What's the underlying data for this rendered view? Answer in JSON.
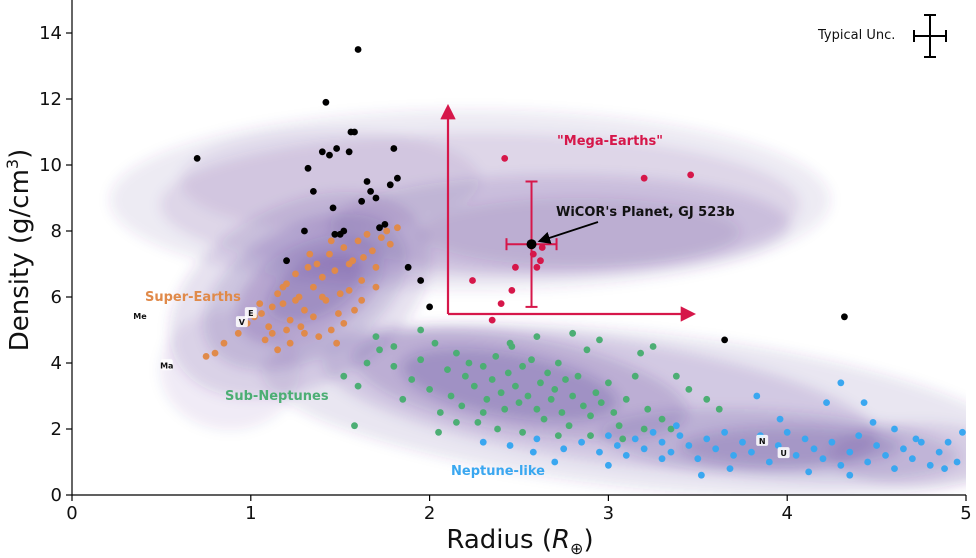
{
  "chart_data": {
    "type": "scatter",
    "xlabel": "Radius (",
    "xlabel_symbol": "R",
    "xlabel_sub": "⊕",
    "xlabel_end": ")",
    "ylabel": "Density (g/cm",
    "ylabel_sup": "3",
    "ylabel_end": ")",
    "xlim": [
      0,
      5
    ],
    "ylim": [
      0,
      15
    ],
    "xticks": [
      "0",
      "1",
      "2",
      "3",
      "4",
      "5"
    ],
    "yticks": [
      "0",
      "2",
      "4",
      "6",
      "8",
      "10",
      "12",
      "14"
    ],
    "grid": false,
    "colors": {
      "black": "#000000",
      "super_earth": "#e08a4a",
      "sub_neptune": "#4cae74",
      "neptune_like": "#3aa7f0",
      "mega_earth": "#d6174a",
      "kde": "#4b2a8e"
    },
    "annotations": {
      "super_earths": "Super-Earths",
      "sub_neptunes": "Sub-Neptunes",
      "neptune_like": "Neptune-like",
      "mega_earths": "\"Mega-Earths\"",
      "wicor": "WiCOR's Planet, GJ 523b",
      "typical_unc": "Typical Unc."
    },
    "solar_system": [
      {
        "label": "Me",
        "x": 0.38,
        "y": 5.43
      },
      {
        "label": "V",
        "x": 0.95,
        "y": 5.24
      },
      {
        "label": "E",
        "x": 1.0,
        "y": 5.51
      },
      {
        "label": "Ma",
        "x": 0.53,
        "y": 3.93
      },
      {
        "label": "N",
        "x": 3.86,
        "y": 1.64
      },
      {
        "label": "U",
        "x": 3.98,
        "y": 1.27
      }
    ],
    "highlight": {
      "x": 2.57,
      "y": 7.6,
      "xerr": 0.14,
      "yerr": 1.9
    },
    "series": [
      {
        "name": "Super-Earths",
        "color_key": "super_earth",
        "points": [
          [
            0.75,
            4.2
          ],
          [
            0.8,
            4.3
          ],
          [
            0.85,
            4.6
          ],
          [
            0.93,
            4.9
          ],
          [
            0.98,
            5.2
          ],
          [
            1.02,
            5.4
          ],
          [
            1.06,
            5.5
          ],
          [
            1.1,
            5.1
          ],
          [
            1.12,
            5.7
          ],
          [
            1.15,
            6.1
          ],
          [
            1.18,
            5.8
          ],
          [
            1.2,
            6.4
          ],
          [
            1.22,
            5.3
          ],
          [
            1.25,
            6.7
          ],
          [
            1.27,
            6.0
          ],
          [
            1.3,
            5.6
          ],
          [
            1.32,
            6.9
          ],
          [
            1.35,
            6.3
          ],
          [
            1.37,
            7.0
          ],
          [
            1.4,
            6.6
          ],
          [
            1.42,
            5.9
          ],
          [
            1.44,
            7.3
          ],
          [
            1.47,
            6.8
          ],
          [
            1.49,
            5.5
          ],
          [
            1.52,
            7.5
          ],
          [
            1.55,
            6.2
          ],
          [
            1.57,
            7.1
          ],
          [
            1.6,
            7.7
          ],
          [
            1.62,
            6.5
          ],
          [
            1.65,
            7.9
          ],
          [
            1.68,
            7.4
          ],
          [
            1.7,
            6.9
          ],
          [
            1.73,
            7.8
          ],
          [
            1.76,
            8.0
          ],
          [
            1.52,
            5.2
          ],
          [
            1.45,
            5.0
          ],
          [
            1.38,
            4.8
          ],
          [
            1.3,
            4.9
          ],
          [
            1.22,
            4.6
          ],
          [
            1.15,
            4.4
          ],
          [
            1.08,
            4.7
          ],
          [
            1.28,
            5.1
          ],
          [
            1.35,
            5.4
          ],
          [
            1.48,
            4.6
          ],
          [
            1.58,
            5.6
          ],
          [
            1.4,
            6.0
          ],
          [
            1.25,
            5.9
          ],
          [
            1.18,
            6.3
          ],
          [
            1.33,
            7.3
          ],
          [
            1.55,
            7.0
          ],
          [
            1.63,
            7.2
          ],
          [
            1.45,
            7.7
          ],
          [
            1.2,
            5.0
          ],
          [
            1.12,
            4.9
          ],
          [
            1.05,
            5.8
          ],
          [
            1.62,
            5.9
          ],
          [
            1.7,
            6.3
          ],
          [
            1.78,
            7.6
          ],
          [
            1.82,
            8.1
          ],
          [
            1.5,
            6.1
          ]
        ]
      },
      {
        "name": "Sub-Neptunes",
        "color_key": "sub_neptune",
        "points": [
          [
            1.52,
            3.6
          ],
          [
            1.6,
            3.3
          ],
          [
            1.65,
            4.0
          ],
          [
            1.72,
            4.4
          ],
          [
            1.8,
            3.9
          ],
          [
            1.85,
            2.9
          ],
          [
            1.9,
            3.5
          ],
          [
            1.95,
            4.1
          ],
          [
            2.0,
            3.2
          ],
          [
            2.03,
            4.6
          ],
          [
            2.06,
            2.5
          ],
          [
            2.1,
            3.8
          ],
          [
            2.12,
            3.0
          ],
          [
            2.15,
            4.3
          ],
          [
            2.18,
            2.7
          ],
          [
            2.2,
            3.6
          ],
          [
            2.22,
            4.0
          ],
          [
            2.25,
            3.3
          ],
          [
            2.27,
            2.2
          ],
          [
            2.3,
            3.9
          ],
          [
            2.32,
            2.9
          ],
          [
            2.35,
            3.5
          ],
          [
            2.37,
            4.2
          ],
          [
            2.4,
            3.1
          ],
          [
            2.42,
            2.6
          ],
          [
            2.44,
            3.7
          ],
          [
            2.46,
            4.5
          ],
          [
            2.48,
            3.3
          ],
          [
            2.5,
            2.8
          ],
          [
            2.52,
            3.9
          ],
          [
            2.55,
            3.0
          ],
          [
            2.57,
            4.1
          ],
          [
            2.6,
            2.6
          ],
          [
            2.62,
            3.4
          ],
          [
            2.64,
            2.3
          ],
          [
            2.66,
            3.7
          ],
          [
            2.68,
            2.9
          ],
          [
            2.7,
            3.2
          ],
          [
            2.72,
            4.0
          ],
          [
            2.74,
            2.5
          ],
          [
            2.76,
            3.5
          ],
          [
            2.78,
            2.1
          ],
          [
            2.8,
            3.0
          ],
          [
            2.83,
            3.6
          ],
          [
            2.86,
            2.7
          ],
          [
            2.88,
            4.4
          ],
          [
            2.9,
            2.4
          ],
          [
            2.93,
            3.1
          ],
          [
            2.96,
            2.8
          ],
          [
            3.0,
            3.4
          ],
          [
            3.03,
            2.5
          ],
          [
            3.06,
            2.1
          ],
          [
            3.1,
            2.9
          ],
          [
            3.15,
            3.6
          ],
          [
            3.18,
            4.3
          ],
          [
            3.22,
            2.6
          ],
          [
            3.25,
            4.5
          ],
          [
            3.3,
            2.3
          ],
          [
            3.38,
            3.6
          ],
          [
            3.45,
            3.2
          ],
          [
            3.55,
            2.9
          ],
          [
            3.62,
            2.6
          ],
          [
            3.2,
            2.0
          ],
          [
            2.15,
            2.2
          ],
          [
            2.3,
            2.5
          ],
          [
            2.45,
            4.6
          ],
          [
            2.6,
            4.8
          ],
          [
            2.8,
            4.9
          ],
          [
            2.95,
            4.7
          ],
          [
            1.8,
            4.5
          ],
          [
            1.7,
            4.8
          ],
          [
            1.95,
            5.0
          ],
          [
            1.58,
            2.1
          ],
          [
            2.05,
            1.9
          ],
          [
            2.38,
            2.0
          ],
          [
            2.52,
            1.9
          ],
          [
            2.72,
            1.8
          ],
          [
            2.9,
            1.8
          ],
          [
            3.08,
            1.7
          ],
          [
            3.35,
            2.0
          ]
        ]
      },
      {
        "name": "Neptune-like",
        "color_key": "neptune_like",
        "points": [
          [
            2.3,
            1.6
          ],
          [
            2.45,
            1.5
          ],
          [
            2.6,
            1.7
          ],
          [
            2.75,
            1.4
          ],
          [
            2.85,
            1.6
          ],
          [
            2.95,
            1.3
          ],
          [
            3.0,
            1.8
          ],
          [
            3.05,
            1.5
          ],
          [
            3.1,
            1.2
          ],
          [
            3.15,
            1.7
          ],
          [
            3.2,
            1.4
          ],
          [
            3.25,
            1.9
          ],
          [
            3.3,
            1.6
          ],
          [
            3.35,
            1.3
          ],
          [
            3.4,
            1.8
          ],
          [
            3.45,
            1.5
          ],
          [
            3.5,
            1.1
          ],
          [
            3.55,
            1.7
          ],
          [
            3.6,
            1.4
          ],
          [
            3.65,
            1.9
          ],
          [
            3.7,
            1.2
          ],
          [
            3.75,
            1.6
          ],
          [
            3.8,
            1.3
          ],
          [
            3.85,
            1.8
          ],
          [
            3.9,
            1.0
          ],
          [
            3.95,
            1.5
          ],
          [
            4.0,
            1.9
          ],
          [
            4.05,
            1.2
          ],
          [
            4.1,
            1.7
          ],
          [
            4.15,
            1.4
          ],
          [
            4.2,
            1.1
          ],
          [
            4.25,
            1.6
          ],
          [
            4.3,
            0.9
          ],
          [
            4.35,
            1.3
          ],
          [
            4.4,
            1.8
          ],
          [
            4.45,
            1.0
          ],
          [
            4.5,
            1.5
          ],
          [
            4.55,
            1.2
          ],
          [
            4.6,
            0.8
          ],
          [
            4.65,
            1.4
          ],
          [
            4.7,
            1.1
          ],
          [
            4.75,
            1.6
          ],
          [
            4.8,
            0.9
          ],
          [
            4.85,
            1.3
          ],
          [
            4.9,
            1.6
          ],
          [
            4.95,
            1.0
          ],
          [
            4.98,
            1.9
          ],
          [
            4.22,
            2.8
          ],
          [
            4.3,
            3.4
          ],
          [
            4.43,
            2.8
          ],
          [
            3.83,
            3.0
          ],
          [
            3.38,
            2.1
          ],
          [
            4.72,
            1.7
          ],
          [
            4.88,
            0.8
          ],
          [
            4.6,
            2.0
          ],
          [
            3.52,
            0.6
          ],
          [
            3.68,
            0.8
          ],
          [
            4.12,
            0.7
          ],
          [
            4.35,
            0.6
          ],
          [
            3.96,
            2.3
          ],
          [
            4.48,
            2.2
          ],
          [
            3.0,
            0.9
          ],
          [
            3.3,
            1.1
          ],
          [
            2.58,
            1.3
          ],
          [
            2.7,
            1.0
          ]
        ]
      },
      {
        "name": "Mega-Earths",
        "color_key": "mega_earth",
        "points": [
          [
            2.42,
            10.2
          ],
          [
            3.2,
            9.6
          ],
          [
            3.46,
            9.7
          ],
          [
            2.24,
            6.5
          ],
          [
            2.4,
            5.8
          ],
          [
            2.46,
            6.2
          ],
          [
            2.48,
            6.9
          ],
          [
            2.58,
            7.3
          ],
          [
            2.62,
            7.1
          ],
          [
            2.63,
            7.5
          ],
          [
            2.6,
            6.9
          ],
          [
            2.35,
            5.3
          ]
        ]
      },
      {
        "name": "Other",
        "color_key": "black",
        "points": [
          [
            0.7,
            10.2
          ],
          [
            1.2,
            7.1
          ],
          [
            1.3,
            8.0
          ],
          [
            1.32,
            9.9
          ],
          [
            1.35,
            9.2
          ],
          [
            1.4,
            10.4
          ],
          [
            1.42,
            11.9
          ],
          [
            1.44,
            10.3
          ],
          [
            1.46,
            8.7
          ],
          [
            1.47,
            7.9
          ],
          [
            1.48,
            10.5
          ],
          [
            1.5,
            7.9
          ],
          [
            1.52,
            8.0
          ],
          [
            1.55,
            10.4
          ],
          [
            1.56,
            11.0
          ],
          [
            1.58,
            11.0
          ],
          [
            1.6,
            13.5
          ],
          [
            1.62,
            8.9
          ],
          [
            1.65,
            9.5
          ],
          [
            1.67,
            9.2
          ],
          [
            1.7,
            9.0
          ],
          [
            1.72,
            8.1
          ],
          [
            1.75,
            8.2
          ],
          [
            1.78,
            9.4
          ],
          [
            1.8,
            10.5
          ],
          [
            1.82,
            9.6
          ],
          [
            1.88,
            6.9
          ],
          [
            1.95,
            6.5
          ],
          [
            2.0,
            5.7
          ],
          [
            3.65,
            4.7
          ],
          [
            4.32,
            5.4
          ]
        ]
      }
    ]
  }
}
